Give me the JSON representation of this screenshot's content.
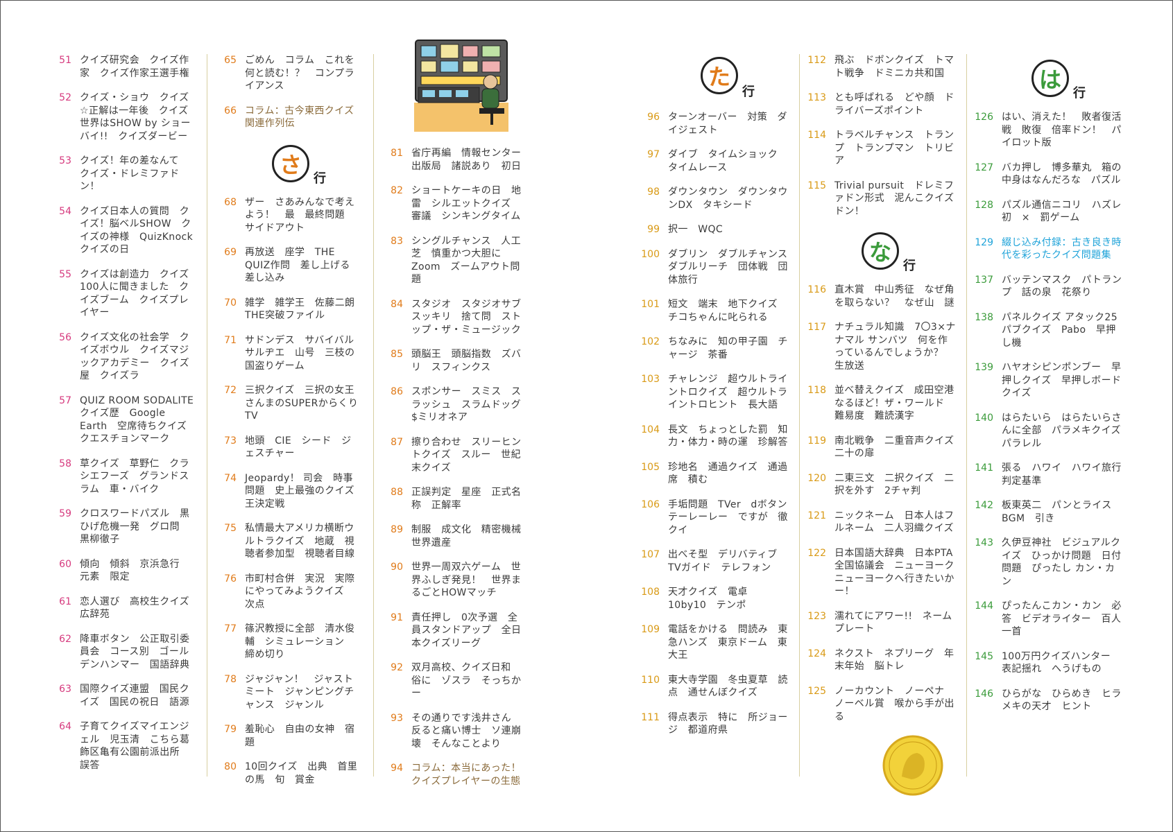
{
  "columns": [
    [
      {
        "num": "51",
        "text": "クイズ研究会　クイズ作家　クイズ作家王選手権"
      },
      {
        "num": "52",
        "text": "クイズ・ショウ　クイズ☆正解は一年後　クイズ世界はSHOW by ショーバイ!!　クイズダービー"
      },
      {
        "num": "53",
        "text": "クイズ！年の差なんて　クイズ・ドレミファドン！"
      },
      {
        "num": "54",
        "text": "クイズ日本人の質問　クイズ！脳ベルSHOW　クイズの神様　QuizKnock　クイズの日"
      },
      {
        "num": "55",
        "text": "クイズは創造力　クイズ100人に聞きました　クイズブーム　クイズプレイヤー"
      },
      {
        "num": "56",
        "text": "クイズ文化の社会学　クイズボウル　クイズマジックアカデミー　クイズ屋　クイズラ"
      },
      {
        "num": "57",
        "text": "QUIZ ROOM SODALITE　クイズ歴　Google Earth　空席待ちクイズ　クエスチョンマーク"
      },
      {
        "num": "58",
        "text": "草クイズ　草野仁　クラシエフーズ　グランドスラム　車・バイク"
      },
      {
        "num": "59",
        "text": "クロスワードパズル　黒ひげ危機一発　グロ問　黒柳徹子"
      },
      {
        "num": "60",
        "text": "傾向　傾斜　京浜急行　元素　限定"
      },
      {
        "num": "61",
        "text": "恋人選び　高校生クイズ　広辞苑"
      },
      {
        "num": "62",
        "text": "降車ボタン　公正取引委員会　コース別　ゴールデンハンマー　国語辞典"
      },
      {
        "num": "63",
        "text": "国際クイズ連盟　国民クイズ　国民の祝日　語源"
      },
      {
        "num": "64",
        "text": "子育てクイズマイエンジェル　児玉清　こちら葛飾区亀有公園前派出所　誤答"
      }
    ],
    [
      {
        "num": "65",
        "text": "ごめん　コラム　これを何と読む！？　コンプライアンス"
      },
      {
        "num": "66",
        "text": "コラム：古今東西クイズ関連作列伝",
        "style": "brown"
      },
      {
        "header": "さ"
      },
      {
        "num": "68",
        "text": "ザー　さあみんなで考えよう！　最　最終問題　サイドアウト"
      },
      {
        "num": "69",
        "text": "再放送　座学　THE QUIZ作問　差し上げる　差し込み"
      },
      {
        "num": "70",
        "text": "雑学　雑学王　佐藤二朗　THE突破ファイル"
      },
      {
        "num": "71",
        "text": "サドンデス　サバイバル　サルヂエ　山号　三枝の国盗りゲーム"
      },
      {
        "num": "72",
        "text": "三択クイズ　三択の女王　さんまのSUPERからくりTV"
      },
      {
        "num": "73",
        "text": "地頭　CIE　シード　ジェスチャー"
      },
      {
        "num": "74",
        "text": "Jeopardy！ 司会　時事問題　史上最強のクイズ王決定戦"
      },
      {
        "num": "75",
        "text": "私情最大アメリカ横断ウルトラクイズ　地蔵　視聴者参加型　視聴者目線"
      },
      {
        "num": "76",
        "text": "市町村合併　実況　実際にやってみようクイズ　次点"
      },
      {
        "num": "77",
        "text": "篠沢教授に全部　清水俊輔　シミュレーション　締め切り"
      },
      {
        "num": "78",
        "text": "ジャジャン！　ジャストミート　ジャンピングチャンス　ジャンル"
      },
      {
        "num": "79",
        "text": "羞恥心　自由の女神　宿題"
      },
      {
        "num": "80",
        "text": "10回クイズ　出典　首里の馬　旬　賞金"
      }
    ],
    [
      {
        "num": "81",
        "text": "省庁再編　情報センター出版局　諸説あり　初日"
      },
      {
        "num": "82",
        "text": "ショートケーキの日　地雷　シルエットクイズ　審議　シンキングタイム"
      },
      {
        "num": "83",
        "text": "シングルチャンス　人工芝　慎重かつ大胆に　Zoom　ズームアウト問題"
      },
      {
        "num": "84",
        "text": "スタジオ　スタジオサブ　スッキリ　捨て問　ストップ・ザ・ミュージック"
      },
      {
        "num": "85",
        "text": "頭脳王　頭脳指数　ズバリ　スフィンクス"
      },
      {
        "num": "86",
        "text": "スポンサー　スミス　スラッシュ　スラムドッグ$ミリオネア"
      },
      {
        "num": "87",
        "text": "擦り合わせ　スリーヒントクイズ　スルー　世紀末クイズ"
      },
      {
        "num": "88",
        "text": "正誤判定　星座　正式名称　正解率"
      },
      {
        "num": "89",
        "text": "制服　成文化　精密機械　世界遺産"
      },
      {
        "num": "90",
        "text": "世界一周双六ゲーム　世界ふしぎ発見！　世界まるごとHOWマッチ"
      },
      {
        "num": "91",
        "text": "責任押し　0次予選　全員スタンドアップ　全日本クイズリーグ"
      },
      {
        "num": "92",
        "text": "双月高校、クイズ日和　俗に　ゾスラ　そっちかー"
      },
      {
        "num": "93",
        "text": "その通りです浅井さん　反ると痛い博士　ソ連崩壊　そんなことより"
      },
      {
        "num": "94",
        "text": "コラム：本当にあった！クイズプレイヤーの生態",
        "style": "brown"
      }
    ],
    [
      {
        "num": "96",
        "text": "ターンオーバー　対策　ダイジェスト"
      },
      {
        "num": "97",
        "text": "ダイブ　タイムショック　タイムレース"
      },
      {
        "num": "98",
        "text": "ダウンタウン　ダウンタウンDX　タキシード"
      },
      {
        "num": "99",
        "text": "択一　WQC"
      },
      {
        "num": "100",
        "text": "ダブリン　ダブルチャンス　ダブルリーチ　団体戦　団体旅行"
      },
      {
        "num": "101",
        "text": "短文　端末　地下クイズ　チコちゃんに叱られる"
      },
      {
        "num": "102",
        "text": "ちなみに　知の甲子園　チャージ　茶番"
      },
      {
        "num": "103",
        "text": "チャレンジ　超ウルトライントロクイズ　超ウルトライントロヒント　長大語"
      },
      {
        "num": "104",
        "text": "長文　ちょっとした罰　知力・体力・時の運　珍解答"
      },
      {
        "num": "105",
        "text": "珍地名　通過クイズ　通過席　積む"
      },
      {
        "num": "106",
        "text": "手垢問題　TVer　dボタン　テーレーレー　ですが　徹クイ"
      },
      {
        "num": "107",
        "text": "出べそ型　デリバティブ　TVガイド　テレフォン"
      },
      {
        "num": "108",
        "text": "天才クイズ　電卓　10by10　テンポ"
      },
      {
        "num": "109",
        "text": "電話をかける　問読み　東急ハンズ　東京ドーム　東大王"
      },
      {
        "num": "110",
        "text": "東大寺学園　冬虫夏草　読点　通せんぼクイズ"
      },
      {
        "num": "111",
        "text": "得点表示　特に　所ジョージ　都道府県"
      }
    ],
    [
      {
        "num": "112",
        "text": "飛ぶ　ドボンクイズ　トマト戦争　ドミニカ共和国"
      },
      {
        "num": "113",
        "text": "とも呼ばれる　どや顔　ドライバーズポイント"
      },
      {
        "num": "114",
        "text": "トラベルチャンス　トランプ　トランプマン　トリビア"
      },
      {
        "num": "115",
        "text": "Trivial pursuit　ドレミファドン形式　泥んこクイズ　ドン！"
      },
      {
        "header": "な"
      },
      {
        "num": "116",
        "text": "直木賞　中山秀征　なぜ角を取らない？　なぜ山　謎"
      },
      {
        "num": "117",
        "text": "ナチュラル知識　7〇3×ナナマル サンバツ　何を作っているんでしょうか？　生放送"
      },
      {
        "num": "118",
        "text": "並べ替えクイズ　成田空港　なるほど！ザ・ワールド　難易度　難読漢字"
      },
      {
        "num": "119",
        "text": "南北戦争　二重音声クイズ　二十の扉"
      },
      {
        "num": "120",
        "text": "二東三文　二択クイズ　二択を外す　2チャ判"
      },
      {
        "num": "121",
        "text": "ニックネーム　日本人はフルネーム　二人羽織クイズ"
      },
      {
        "num": "122",
        "text": "日本国語大辞典　日本PTA全国協議会　ニューヨーク　ニューヨークへ行きたいかー！"
      },
      {
        "num": "123",
        "text": "濡れてにアワー!!　ネームプレート"
      },
      {
        "num": "124",
        "text": "ネクスト　ネプリーグ　年末年始　脳トレ"
      },
      {
        "num": "125",
        "text": "ノーカウント　ノーペナ　ノーベル賞　喉から手が出る"
      }
    ],
    [
      {
        "num": "126",
        "text": "はい、消えた！　敗者復活戦　敗復　倍率ドン！　パイロット版"
      },
      {
        "num": "127",
        "text": "バカ押し　博多華丸　箱の中身はなんだろな　パズル"
      },
      {
        "num": "128",
        "text": "パズル通信ニコリ　ハズレ初　×　罰ゲーム"
      },
      {
        "num": "129",
        "text": "綴じ込み付録：古き良き時代を彩ったクイズ問題集",
        "style": "cyan"
      },
      {
        "num": "137",
        "text": "バッテンマスク　パトランプ　話の泉　花祭り"
      },
      {
        "num": "138",
        "text": "パネルクイズ アタック25　パブクイズ　Pabo　早押し機"
      },
      {
        "num": "139",
        "text": "ハヤオシピンポンブー　早押しクイズ　早押しボードクイズ"
      },
      {
        "num": "140",
        "text": "はらたいら　はらたいらさんに全部　パラメキクイズ　パラレル"
      },
      {
        "num": "141",
        "text": "張る　ハワイ　ハワイ旅行　判定基準"
      },
      {
        "num": "142",
        "text": "板東英二　パンとライス　BGM　引き"
      },
      {
        "num": "143",
        "text": "久伊豆神社　ビジュアルクイズ　ひっかけ問題　日付問題　ぴったし カン・カン"
      },
      {
        "num": "144",
        "text": "ぴったんこカン・カン　必答　ビデオライター　百人一首"
      },
      {
        "num": "145",
        "text": "100万円クイズハンター　表記揺れ　へうげもの"
      },
      {
        "num": "146",
        "text": "ひらがな　ひらめき　ヒラメキの天才　ヒント"
      }
    ]
  ],
  "headers": {
    "ta": "た",
    "na": "な",
    "sa": "さ",
    "ha": "は",
    "gyo": "行"
  }
}
